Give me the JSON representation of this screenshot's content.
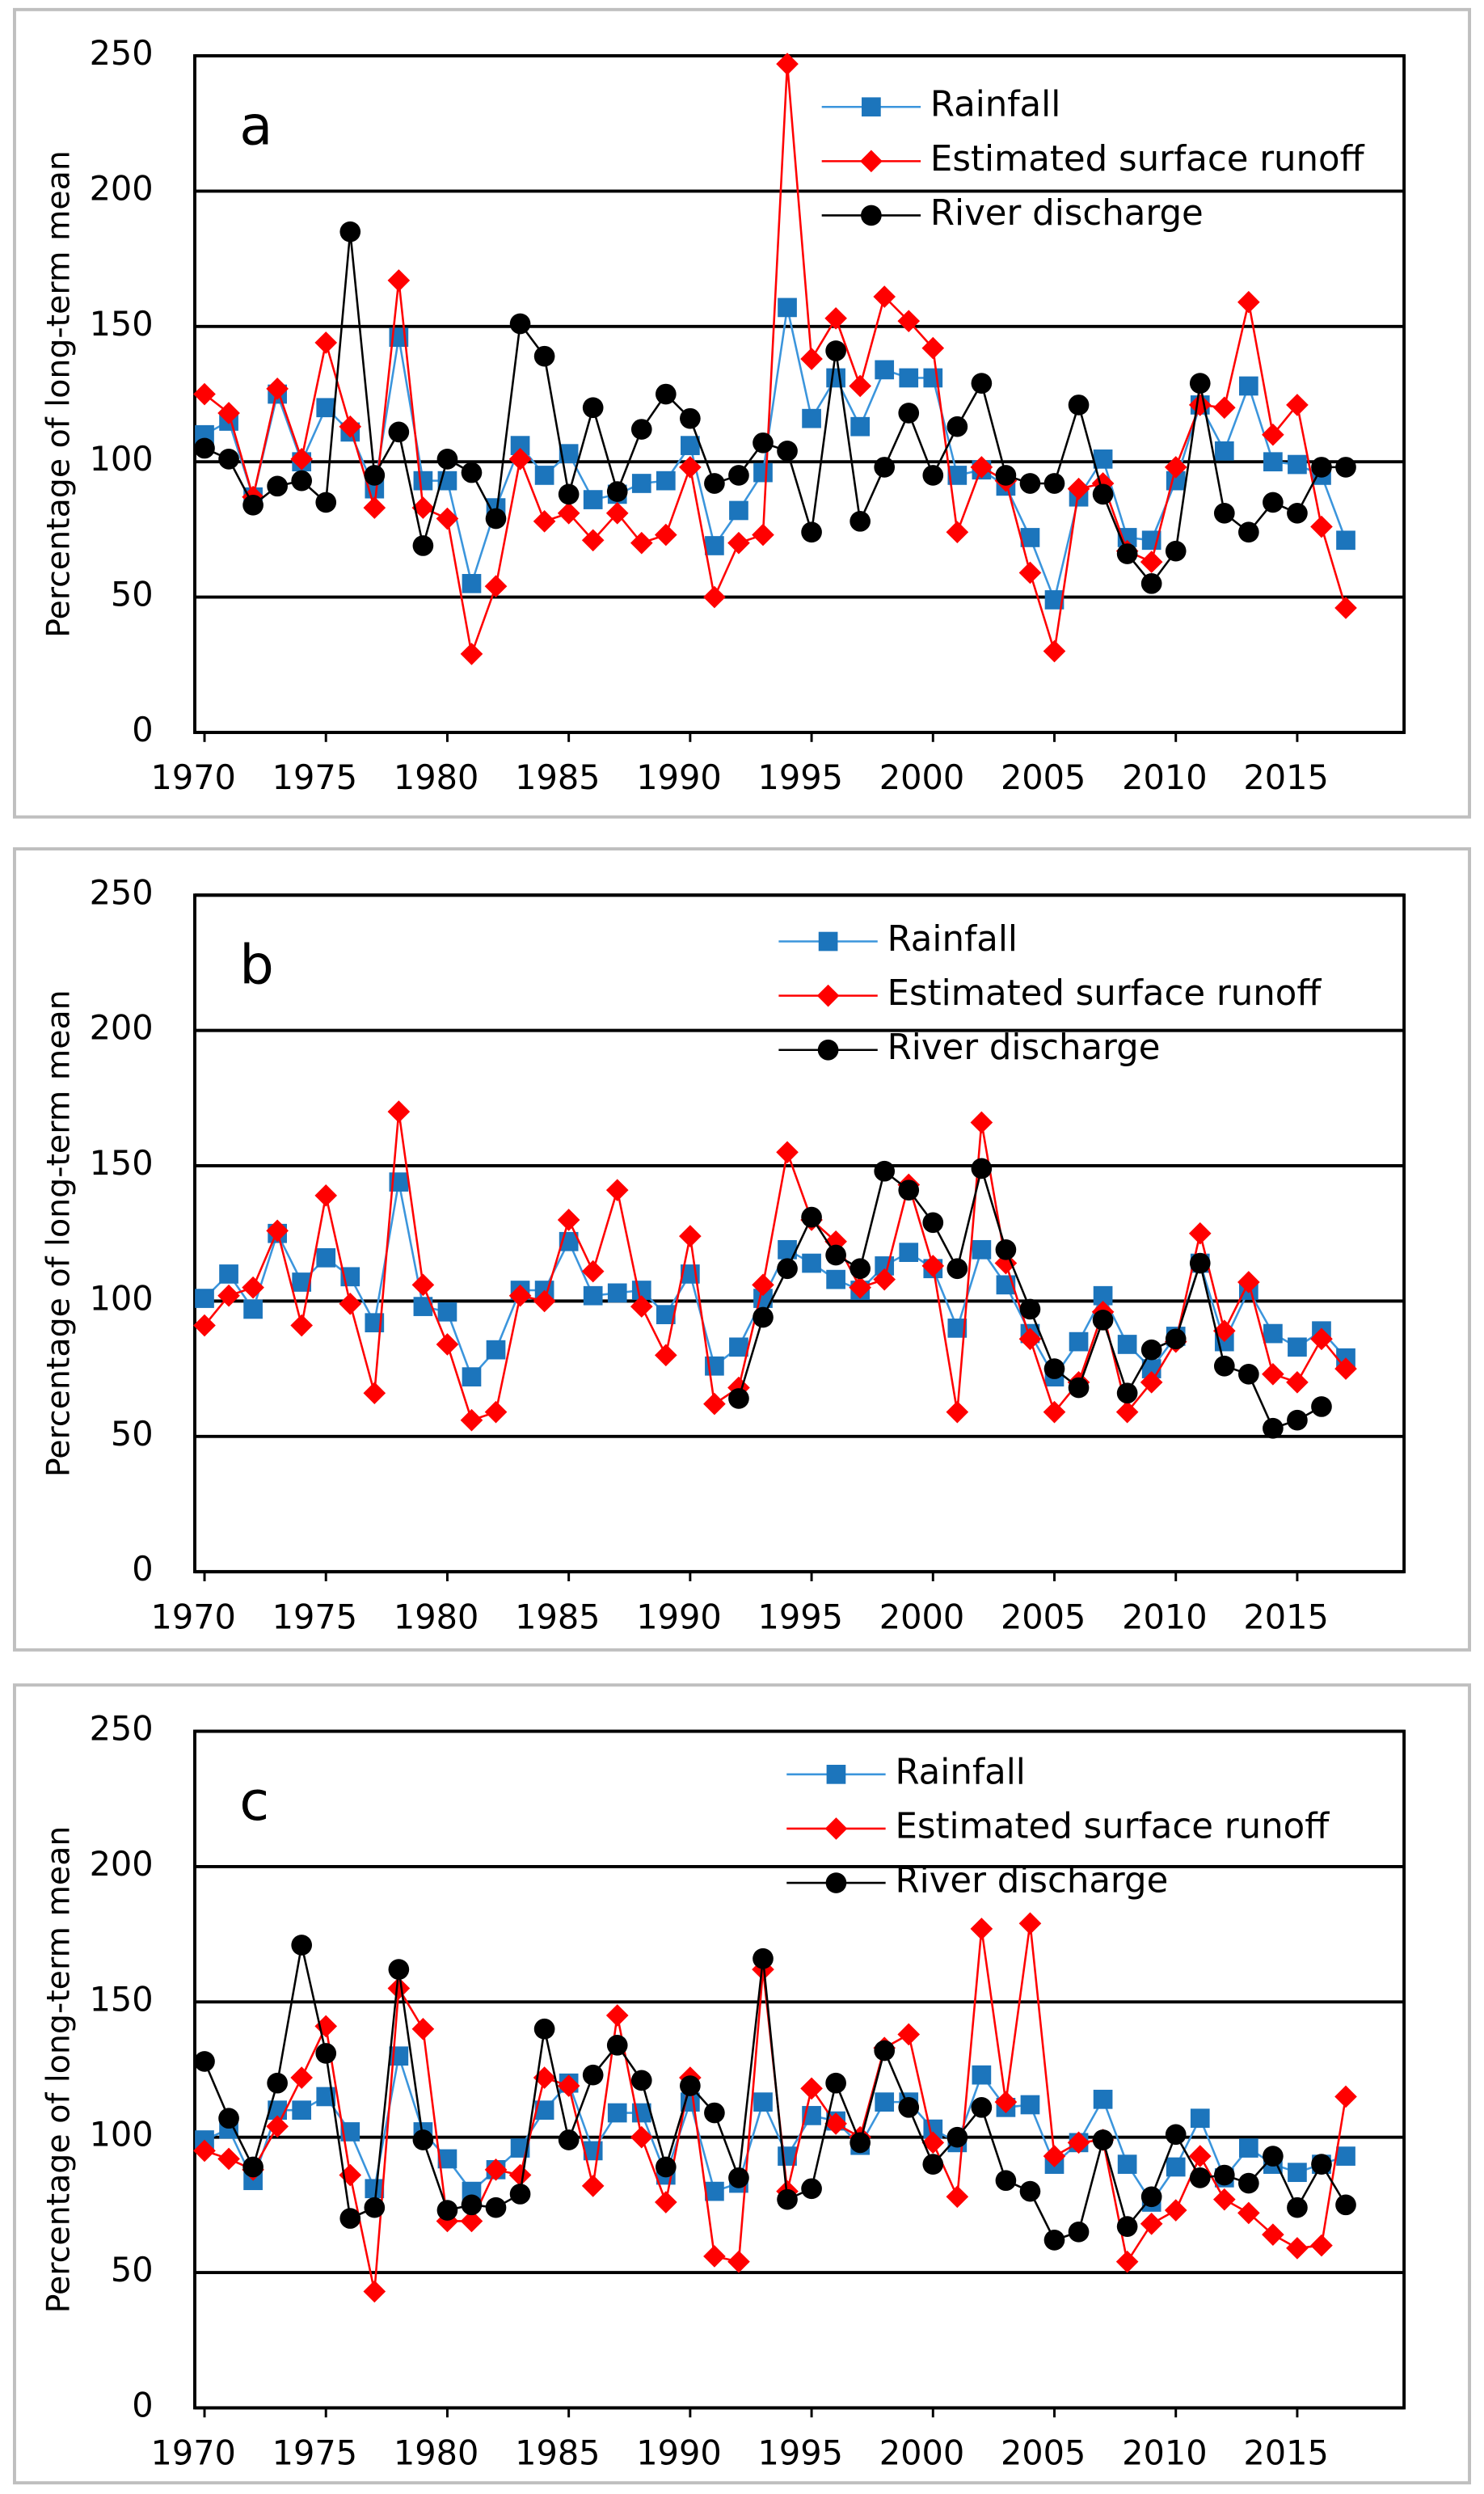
{
  "chart_data": [
    {
      "type": "line",
      "title": "a",
      "y_label": "Percentage of long-term mean",
      "x": [
        1970,
        1971,
        1972,
        1973,
        1974,
        1975,
        1976,
        1977,
        1978,
        1979,
        1980,
        1981,
        1982,
        1983,
        1984,
        1985,
        1986,
        1987,
        1988,
        1989,
        1990,
        1991,
        1992,
        1993,
        1994,
        1995,
        1996,
        1997,
        1998,
        1999,
        2000,
        2001,
        2002,
        2003,
        2004,
        2005,
        2006,
        2007,
        2008,
        2009,
        2010,
        2011,
        2012,
        2013,
        2014,
        2015,
        2016,
        2017
      ],
      "series": [
        {
          "name": "Rainfall",
          "color": "#1c75bc",
          "line_color": "#3b95dc",
          "marker": "square",
          "values": [
            110,
            115,
            87,
            125,
            100,
            120,
            111,
            90,
            146,
            93,
            93,
            55,
            83,
            106,
            95,
            103,
            86,
            88,
            92,
            93,
            106,
            69,
            82,
            96,
            157,
            116,
            131,
            113,
            134,
            131,
            131,
            95,
            97,
            91,
            72,
            49,
            87,
            101,
            72,
            71,
            93,
            121,
            104,
            128,
            100,
            99,
            95,
            71
          ]
        },
        {
          "name": "Estimated surface runoff",
          "color": "#ff0000",
          "line_color": "#ff0000",
          "marker": "diamond",
          "values": [
            125,
            118,
            87,
            127,
            101,
            144,
            113,
            83,
            167,
            83,
            79,
            29,
            54,
            101,
            78,
            81,
            71,
            81,
            70,
            73,
            98,
            50,
            70,
            73,
            247,
            138,
            153,
            128,
            161,
            152,
            142,
            74,
            98,
            93,
            59,
            30,
            90,
            92,
            67,
            63,
            98,
            121,
            120,
            159,
            110,
            121,
            76,
            46
          ]
        },
        {
          "name": "River discharge",
          "color": "#000000",
          "line_color": "#000000",
          "marker": "circle",
          "values": [
            105,
            101,
            84,
            91,
            93,
            85,
            185,
            95,
            111,
            69,
            101,
            96,
            79,
            151,
            139,
            88,
            120,
            89,
            112,
            125,
            116,
            92,
            95,
            107,
            104,
            74,
            141,
            78,
            98,
            118,
            95,
            113,
            129,
            95,
            92,
            92,
            121,
            88,
            66,
            55,
            67,
            129,
            81,
            74,
            85,
            81,
            98,
            98
          ]
        }
      ],
      "xlim": [
        1969.6,
        2019.4
      ],
      "xticks": [
        1970,
        1975,
        1980,
        1985,
        1990,
        1995,
        2000,
        2005,
        2010,
        2015
      ],
      "ylim": [
        0,
        250
      ],
      "yticks": [
        0,
        50,
        100,
        150,
        200,
        250
      ],
      "grid": true
    },
    {
      "type": "line",
      "title": "b",
      "y_label": "Percentage of long-term mean",
      "x": [
        1970,
        1971,
        1972,
        1973,
        1974,
        1975,
        1976,
        1977,
        1978,
        1979,
        1980,
        1981,
        1982,
        1983,
        1984,
        1985,
        1986,
        1987,
        1988,
        1989,
        1990,
        1991,
        1992,
        1993,
        1994,
        1995,
        1996,
        1997,
        1998,
        1999,
        2000,
        2001,
        2002,
        2003,
        2004,
        2005,
        2006,
        2007,
        2008,
        2009,
        2010,
        2011,
        2012,
        2013,
        2014,
        2015,
        2016,
        2017
      ],
      "series": [
        {
          "name": "Rainfall",
          "color": "#1c75bc",
          "line_color": "#3b95dc",
          "marker": "square",
          "values": [
            101,
            110,
            97,
            125,
            107,
            116,
            109,
            92,
            144,
            98,
            96,
            72,
            82,
            104,
            104,
            122,
            102,
            103,
            104,
            95,
            110,
            76,
            83,
            101,
            119,
            114,
            108,
            104,
            113,
            118,
            112,
            90,
            119,
            106,
            88,
            72,
            85,
            102,
            84,
            75,
            87,
            114,
            85,
            104,
            88,
            83,
            89,
            79
          ]
        },
        {
          "name": "Estimated surface runoff",
          "color": "#ff0000",
          "line_color": "#ff0000",
          "marker": "diamond",
          "values": [
            91,
            102,
            105,
            126,
            91,
            139,
            99,
            66,
            170,
            106,
            84,
            56,
            59,
            102,
            100,
            130,
            111,
            141,
            98,
            80,
            124,
            62,
            68,
            106,
            155,
            130,
            122,
            105,
            108,
            143,
            113,
            59,
            166,
            114,
            86,
            59,
            70,
            96,
            59,
            70,
            85,
            125,
            89,
            107,
            73,
            70,
            86,
            75
          ]
        },
        {
          "name": "River discharge",
          "color": "#000000",
          "line_color": "#000000",
          "marker": "circle",
          "values": [
            null,
            null,
            null,
            null,
            null,
            null,
            null,
            null,
            null,
            null,
            null,
            null,
            null,
            null,
            null,
            null,
            null,
            null,
            null,
            null,
            null,
            null,
            64,
            94,
            112,
            131,
            117,
            112,
            148,
            141,
            129,
            112,
            149,
            119,
            97,
            75,
            68,
            93,
            66,
            82,
            86,
            114,
            76,
            73,
            53,
            56,
            61,
            null
          ]
        }
      ],
      "xlim": [
        1969.6,
        2019.4
      ],
      "xticks": [
        1970,
        1975,
        1980,
        1985,
        1990,
        1995,
        2000,
        2005,
        2010,
        2015
      ],
      "ylim": [
        0,
        250
      ],
      "yticks": [
        0,
        50,
        100,
        150,
        200,
        250
      ],
      "grid": true
    },
    {
      "type": "line",
      "title": "c",
      "y_label": "Percentage of long-term mean",
      "x": [
        1970,
        1971,
        1972,
        1973,
        1974,
        1975,
        1976,
        1977,
        1978,
        1979,
        1980,
        1981,
        1982,
        1983,
        1984,
        1985,
        1986,
        1987,
        1988,
        1989,
        1990,
        1991,
        1992,
        1993,
        1994,
        1995,
        1996,
        1997,
        1998,
        1999,
        2000,
        2001,
        2002,
        2003,
        2004,
        2005,
        2006,
        2007,
        2008,
        2009,
        2010,
        2011,
        2012,
        2013,
        2014,
        2015,
        2016,
        2017
      ],
      "series": [
        {
          "name": "Rainfall",
          "color": "#1c75bc",
          "line_color": "#3b95dc",
          "marker": "square",
          "values": [
            99,
            103,
            84,
            110,
            110,
            115,
            102,
            81,
            130,
            102,
            92,
            80,
            88,
            96,
            110,
            120,
            95,
            109,
            109,
            86,
            113,
            80,
            83,
            113,
            93,
            108,
            106,
            97,
            113,
            113,
            103,
            98,
            123,
            111,
            112,
            90,
            98,
            114,
            90,
            76,
            89,
            107,
            85,
            96,
            90,
            87,
            90,
            93
          ]
        },
        {
          "name": "Estimated surface runoff",
          "color": "#ff0000",
          "line_color": "#ff0000",
          "marker": "diamond",
          "values": [
            95,
            92,
            88,
            104,
            122,
            141,
            86,
            43,
            155,
            140,
            69,
            69,
            88,
            86,
            122,
            119,
            82,
            145,
            100,
            76,
            122,
            56,
            54,
            162,
            80,
            118,
            105,
            100,
            133,
            138,
            98,
            78,
            177,
            113,
            179,
            93,
            98,
            99,
            54,
            68,
            73,
            93,
            77,
            72,
            64,
            59,
            60,
            115
          ]
        },
        {
          "name": "River discharge",
          "color": "#000000",
          "line_color": "#000000",
          "marker": "circle",
          "values": [
            128,
            107,
            89,
            120,
            171,
            131,
            70,
            74,
            162,
            99,
            73,
            75,
            74,
            79,
            140,
            99,
            123,
            134,
            121,
            89,
            119,
            109,
            85,
            166,
            77,
            81,
            120,
            98,
            132,
            111,
            90,
            100,
            111,
            84,
            80,
            62,
            65,
            99,
            67,
            78,
            101,
            85,
            86,
            83,
            93,
            74,
            90,
            75
          ]
        }
      ],
      "xlim": [
        1969.6,
        2019.4
      ],
      "xticks": [
        1970,
        1975,
        1980,
        1985,
        1990,
        1995,
        2000,
        2005,
        2010,
        2015
      ],
      "ylim": [
        0,
        250
      ],
      "yticks": [
        0,
        50,
        100,
        150,
        200,
        250
      ],
      "grid": true
    }
  ]
}
